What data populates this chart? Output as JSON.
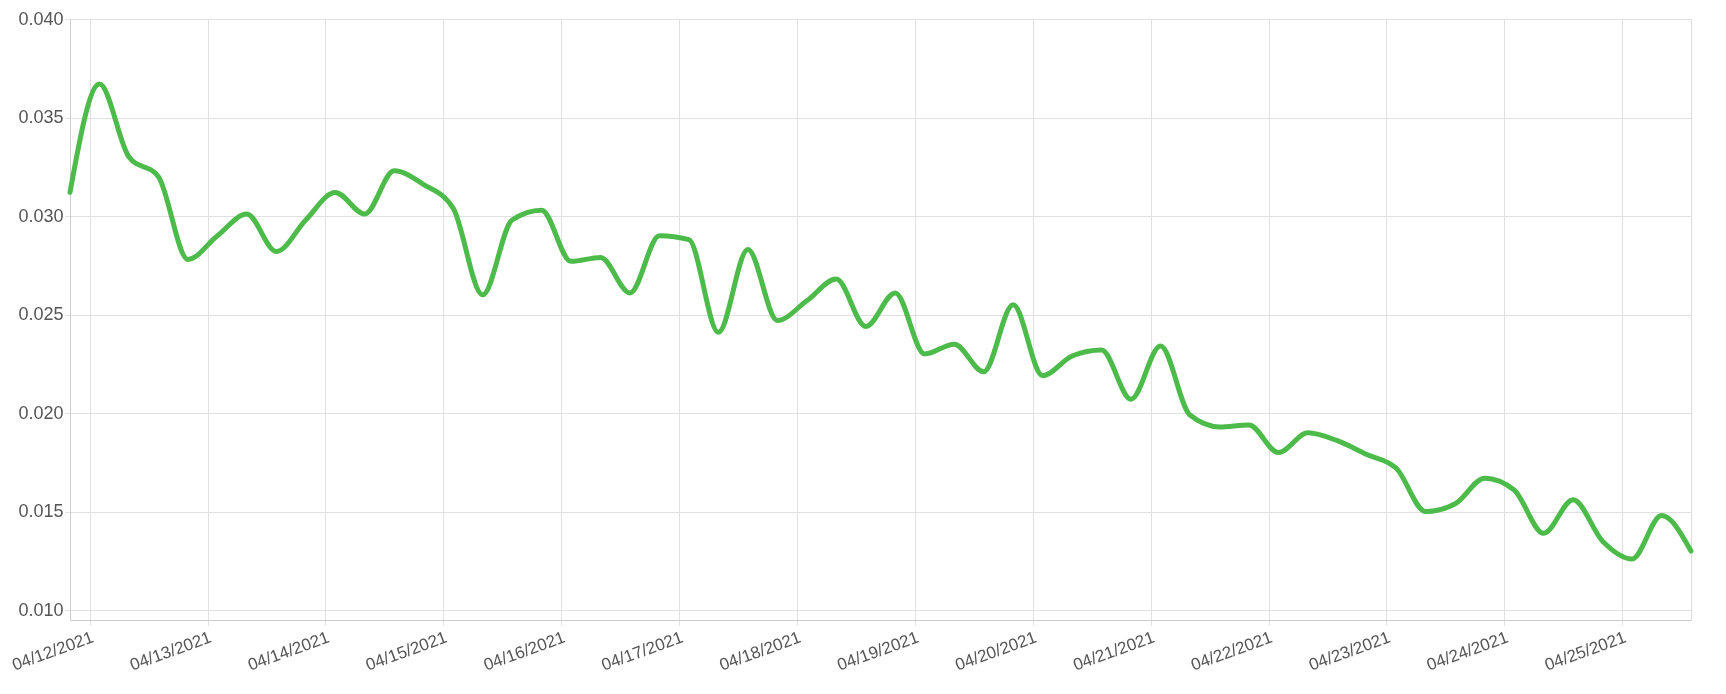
{
  "chart_data": {
    "type": "line",
    "x": [
      "2021-04-11T20:00",
      "2021-04-12T02:00",
      "2021-04-12T08:00",
      "2021-04-12T14:00",
      "2021-04-12T20:00",
      "2021-04-13T02:00",
      "2021-04-13T08:00",
      "2021-04-13T14:00",
      "2021-04-13T20:00",
      "2021-04-14T02:00",
      "2021-04-14T08:00",
      "2021-04-14T14:00",
      "2021-04-14T20:00",
      "2021-04-15T02:00",
      "2021-04-15T08:00",
      "2021-04-15T14:00",
      "2021-04-15T20:00",
      "2021-04-16T02:00",
      "2021-04-16T08:00",
      "2021-04-16T14:00",
      "2021-04-16T20:00",
      "2021-04-17T02:00",
      "2021-04-17T08:00",
      "2021-04-17T14:00",
      "2021-04-17T20:00",
      "2021-04-18T02:00",
      "2021-04-18T08:00",
      "2021-04-18T14:00",
      "2021-04-18T20:00",
      "2021-04-19T02:00",
      "2021-04-19T08:00",
      "2021-04-19T14:00",
      "2021-04-19T20:00",
      "2021-04-20T02:00",
      "2021-04-20T08:00",
      "2021-04-20T14:00",
      "2021-04-20T20:00",
      "2021-04-21T02:00",
      "2021-04-21T08:00",
      "2021-04-21T14:00",
      "2021-04-21T20:00",
      "2021-04-22T02:00",
      "2021-04-22T08:00",
      "2021-04-22T14:00",
      "2021-04-22T20:00",
      "2021-04-23T02:00",
      "2021-04-23T08:00",
      "2021-04-23T14:00",
      "2021-04-23T20:00",
      "2021-04-24T02:00",
      "2021-04-24T08:00",
      "2021-04-24T14:00",
      "2021-04-24T20:00",
      "2021-04-25T02:00",
      "2021-04-25T08:00",
      "2021-04-25T14:00"
    ],
    "series": [
      {
        "color": "#4cbb4a",
        "values": [
          0.0312,
          0.0367,
          0.033,
          0.032,
          0.0278,
          0.029,
          0.0301,
          0.0282,
          0.0298,
          0.0312,
          0.0301,
          0.0323,
          0.0316,
          0.0304,
          0.026,
          0.0298,
          0.0303,
          0.0277,
          0.0279,
          0.0261,
          0.029,
          0.0288,
          0.0241,
          0.0283,
          0.0247,
          0.0257,
          0.0268,
          0.0244,
          0.0261,
          0.023,
          0.0235,
          0.0221,
          0.0255,
          0.0219,
          0.0229,
          0.0232,
          0.0207,
          0.0234,
          0.0199,
          0.0193,
          0.0194,
          0.018,
          0.019,
          0.0186,
          0.0179,
          0.0172,
          0.015,
          0.0154,
          0.0167,
          0.0161,
          0.0139,
          0.0156,
          0.0135,
          0.0126,
          0.0148,
          0.013
        ]
      }
    ],
    "xlim": [
      "2021-04-11T20:00",
      "2021-04-25T14:00"
    ],
    "xticks": [
      {
        "value": "2021-04-12",
        "label": "04/12/2021"
      },
      {
        "value": "2021-04-13",
        "label": "04/13/2021"
      },
      {
        "value": "2021-04-14",
        "label": "04/14/2021"
      },
      {
        "value": "2021-04-15",
        "label": "04/15/2021"
      },
      {
        "value": "2021-04-16",
        "label": "04/16/2021"
      },
      {
        "value": "2021-04-17",
        "label": "04/17/2021"
      },
      {
        "value": "2021-04-18",
        "label": "04/18/2021"
      },
      {
        "value": "2021-04-19",
        "label": "04/19/2021"
      },
      {
        "value": "2021-04-20",
        "label": "04/20/2021"
      },
      {
        "value": "2021-04-21",
        "label": "04/21/2021"
      },
      {
        "value": "2021-04-22",
        "label": "04/22/2021"
      },
      {
        "value": "2021-04-23",
        "label": "04/23/2021"
      },
      {
        "value": "2021-04-24",
        "label": "04/24/2021"
      },
      {
        "value": "2021-04-25",
        "label": "04/25/2021"
      }
    ],
    "ylim": [
      0.0095,
      0.04
    ],
    "yticks": [
      {
        "value": 0.01,
        "label": "0.010"
      },
      {
        "value": 0.015,
        "label": "0.015"
      },
      {
        "value": 0.02,
        "label": "0.020"
      },
      {
        "value": 0.025,
        "label": "0.025"
      },
      {
        "value": 0.03,
        "label": "0.030"
      },
      {
        "value": 0.035,
        "label": "0.035"
      },
      {
        "value": 0.04,
        "label": "0.040"
      }
    ],
    "grid": true,
    "line_style": "solid"
  }
}
